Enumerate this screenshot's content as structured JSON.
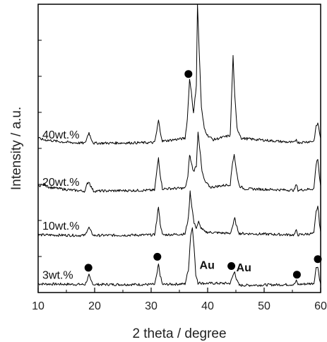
{
  "chart_data": {
    "type": "line",
    "title": "",
    "xlabel": "2 theta / degree",
    "ylabel": "Intensity / a.u.",
    "xlim": [
      10,
      60
    ],
    "ylim": [
      0,
      100
    ],
    "x_ticks": [
      10,
      20,
      30,
      40,
      50,
      60
    ],
    "y_ticks": [],
    "grid": false,
    "legend": "none",
    "line_color": "#000000",
    "series": [
      {
        "name": "3wt.%",
        "baseline": 2.8,
        "points": [
          [
            10,
            3.0
          ],
          [
            18.3,
            2.8
          ],
          [
            18.7,
            4.5
          ],
          [
            19.0,
            6.0
          ],
          [
            19.3,
            4.3
          ],
          [
            19.8,
            2.8
          ],
          [
            30.6,
            2.8
          ],
          [
            31.0,
            6.0
          ],
          [
            31.3,
            9.8
          ],
          [
            31.6,
            6.0
          ],
          [
            32.0,
            2.8
          ],
          [
            36.0,
            3.0
          ],
          [
            36.6,
            8.0
          ],
          [
            37.0,
            20.0
          ],
          [
            37.3,
            22.5
          ],
          [
            37.6,
            16.0
          ],
          [
            37.9,
            6.0
          ],
          [
            38.3,
            3.2
          ],
          [
            38.6,
            3.8
          ],
          [
            38.9,
            3.2
          ],
          [
            44.0,
            3.2
          ],
          [
            44.5,
            6.0
          ],
          [
            44.8,
            7.3
          ],
          [
            45.1,
            4.5
          ],
          [
            45.6,
            2.5
          ],
          [
            55.3,
            2.8
          ],
          [
            55.7,
            4.0
          ],
          [
            56.0,
            2.8
          ],
          [
            58.8,
            3.2
          ],
          [
            59.2,
            8.5
          ],
          [
            59.5,
            9.2
          ],
          [
            59.8,
            4.5
          ],
          [
            60,
            3.0
          ]
        ]
      },
      {
        "name": "10wt.%",
        "baseline": 19.8,
        "points": [
          [
            10,
            20.0
          ],
          [
            18.3,
            19.8
          ],
          [
            18.7,
            21.8
          ],
          [
            19.0,
            22.5
          ],
          [
            19.3,
            21.3
          ],
          [
            19.8,
            19.8
          ],
          [
            30.6,
            20.0
          ],
          [
            31.0,
            25.0
          ],
          [
            31.3,
            30.0
          ],
          [
            31.6,
            24.0
          ],
          [
            32.0,
            20.0
          ],
          [
            36.0,
            20.3
          ],
          [
            36.6,
            26.0
          ],
          [
            36.9,
            35.0
          ],
          [
            37.2,
            30.0
          ],
          [
            37.6,
            24.0
          ],
          [
            38.0,
            22.5
          ],
          [
            38.4,
            24.5
          ],
          [
            38.7,
            22.8
          ],
          [
            39.5,
            21.0
          ],
          [
            44.0,
            20.5
          ],
          [
            44.5,
            23.5
          ],
          [
            44.8,
            25.8
          ],
          [
            45.1,
            23.0
          ],
          [
            45.6,
            20.5
          ],
          [
            55.3,
            20.0
          ],
          [
            55.7,
            21.5
          ],
          [
            56.0,
            20.0
          ],
          [
            58.8,
            20.5
          ],
          [
            59.2,
            28.0
          ],
          [
            59.5,
            30.0
          ],
          [
            59.8,
            24.0
          ],
          [
            60,
            21.0
          ]
        ]
      },
      {
        "name": "20wt.%",
        "baseline": 35.0,
        "points": [
          [
            10,
            37.0
          ],
          [
            11,
            37.5
          ],
          [
            12,
            36.5
          ],
          [
            14,
            36.0
          ],
          [
            16,
            35.5
          ],
          [
            18.3,
            35.2
          ],
          [
            18.7,
            37.8
          ],
          [
            19.0,
            38.5
          ],
          [
            19.3,
            37.0
          ],
          [
            19.8,
            35.2
          ],
          [
            30.6,
            35.5
          ],
          [
            31.0,
            42.0
          ],
          [
            31.3,
            46.8
          ],
          [
            31.6,
            41.0
          ],
          [
            32.0,
            36.0
          ],
          [
            36.0,
            36.2
          ],
          [
            36.5,
            40.0
          ],
          [
            36.8,
            48.0
          ],
          [
            37.1,
            45.0
          ],
          [
            37.5,
            42.0
          ],
          [
            38.0,
            44.0
          ],
          [
            38.3,
            56.0
          ],
          [
            38.6,
            50.0
          ],
          [
            39.0,
            42.0
          ],
          [
            39.5,
            38.5
          ],
          [
            40.5,
            36.5
          ],
          [
            44.0,
            37.5
          ],
          [
            44.4,
            45.0
          ],
          [
            44.7,
            48.0
          ],
          [
            45.1,
            42.0
          ],
          [
            45.6,
            37.0
          ],
          [
            46.5,
            36.0
          ],
          [
            55.3,
            35.5
          ],
          [
            55.7,
            37.5
          ],
          [
            56.0,
            35.5
          ],
          [
            58.8,
            36.0
          ],
          [
            59.2,
            44.5
          ],
          [
            59.5,
            46.5
          ],
          [
            59.8,
            40.0
          ],
          [
            60,
            37.0
          ]
        ]
      },
      {
        "name": "40wt.%",
        "baseline": 51.5,
        "points": [
          [
            10,
            53.5
          ],
          [
            11,
            53.0
          ],
          [
            12,
            52.8
          ],
          [
            14,
            52.3
          ],
          [
            16,
            52.0
          ],
          [
            18.3,
            51.8
          ],
          [
            18.7,
            54.0
          ],
          [
            19.0,
            55.5
          ],
          [
            19.3,
            53.8
          ],
          [
            19.8,
            51.8
          ],
          [
            30.6,
            52.0
          ],
          [
            31.0,
            56.0
          ],
          [
            31.3,
            59.8
          ],
          [
            31.6,
            56.0
          ],
          [
            32.0,
            52.5
          ],
          [
            36.0,
            53.5
          ],
          [
            36.4,
            60.0
          ],
          [
            36.8,
            74.0
          ],
          [
            37.1,
            70.0
          ],
          [
            37.5,
            62.0
          ],
          [
            38.0,
            72.0
          ],
          [
            38.2,
            100.0
          ],
          [
            38.5,
            84.0
          ],
          [
            38.9,
            64.0
          ],
          [
            39.4,
            57.0
          ],
          [
            40.0,
            54.5
          ],
          [
            41.0,
            53.0
          ],
          [
            44.0,
            54.5
          ],
          [
            44.2,
            66.0
          ],
          [
            44.5,
            82.0
          ],
          [
            44.8,
            68.0
          ],
          [
            45.2,
            57.0
          ],
          [
            46.0,
            53.5
          ],
          [
            55.3,
            52.0
          ],
          [
            55.7,
            53.2
          ],
          [
            56.0,
            52.0
          ],
          [
            58.8,
            52.5
          ],
          [
            59.2,
            57.5
          ],
          [
            59.5,
            58.8
          ],
          [
            59.8,
            55.5
          ],
          [
            60,
            53.5
          ]
        ]
      }
    ],
    "markers": [
      {
        "x": 18.9,
        "y": 8.6
      },
      {
        "x": 31.1,
        "y": 12.4
      },
      {
        "x": 44.2,
        "y": 9.2
      },
      {
        "x": 55.8,
        "y": 6.2
      },
      {
        "x": 59.5,
        "y": 11.6
      },
      {
        "x": 36.6,
        "y": 75.8
      }
    ],
    "annotations": [
      {
        "text": "Au",
        "x": 39.9,
        "y": 8.2
      },
      {
        "text": "Au",
        "x": 46.4,
        "y": 7.3
      }
    ]
  }
}
